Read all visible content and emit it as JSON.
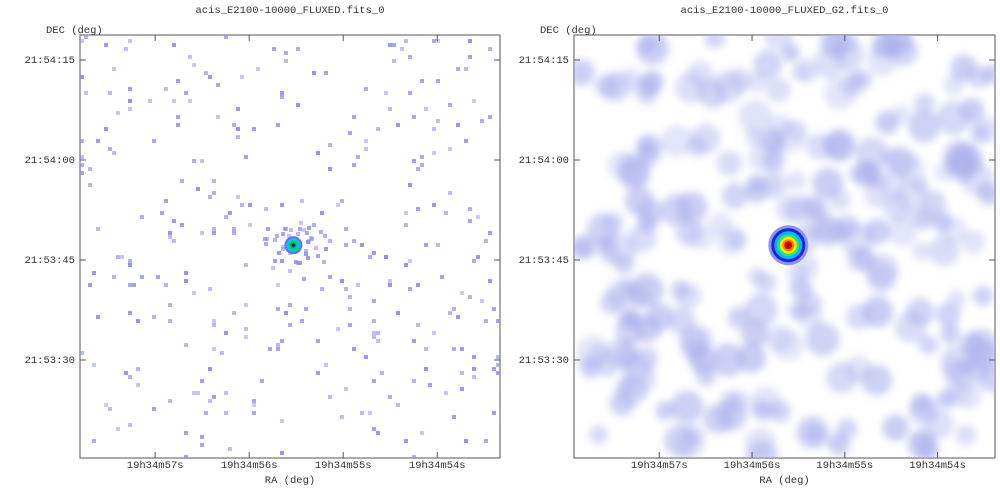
{
  "chart_data": [
    {
      "type": "image",
      "title": "acis_E2100-10000_FLUXED.fits_0",
      "xlabel": "RA (deg)",
      "ylabel": "DEC (deg)",
      "xlim": [
        293.74083,
        293.72222
      ],
      "ylim": [
        21.887583,
        21.905208
      ],
      "xticks": [
        {
          "value": 293.7375,
          "label": "19h34m57s"
        },
        {
          "value": 293.733333,
          "label": "19h34m56s"
        },
        {
          "value": 293.729167,
          "label": "19h34m55s"
        },
        {
          "value": 293.725,
          "label": "19h34m54s"
        }
      ],
      "yticks": [
        {
          "value": 21.904167,
          "label": "21:54:15"
        },
        {
          "value": 21.9,
          "label": "21:54:00"
        },
        {
          "value": 21.895833,
          "label": "21:53:45"
        },
        {
          "value": 21.891667,
          "label": "21:53:30"
        }
      ]
    },
    {
      "type": "image",
      "title": "acis_E2100-10000_FLUXED_G2.fits_0",
      "xlabel": "RA (deg)",
      "ylabel": "DEC (deg)",
      "xlim": [
        293.74133,
        293.72242
      ],
      "ylim": [
        21.887583,
        21.905208
      ],
      "xticks": [
        {
          "value": 293.7375,
          "label": "19h34m57s"
        },
        {
          "value": 293.733333,
          "label": "19h34m56s"
        },
        {
          "value": 293.729167,
          "label": "19h34m55s"
        },
        {
          "value": 293.725,
          "label": "19h34m54s"
        }
      ],
      "yticks": [
        {
          "value": 21.904167,
          "label": "21:54:15"
        },
        {
          "value": 21.9,
          "label": "21:54:00"
        },
        {
          "value": 21.895833,
          "label": "21:53:45"
        },
        {
          "value": 21.891667,
          "label": "21:53:30"
        }
      ]
    }
  ]
}
